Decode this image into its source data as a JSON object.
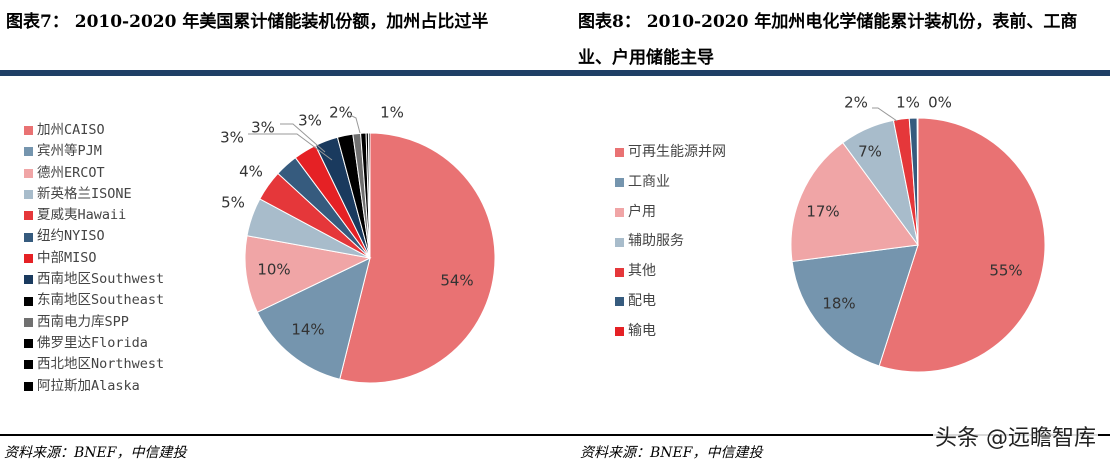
{
  "titles": {
    "left": "图表7： 2010-2020 年美国累计储能装机份额，加州占比过半",
    "right": "图表8： 2010-2020 年加州电化学储能累计装机份，表前、工商业、户用储能主导"
  },
  "chart_data": [
    {
      "type": "pie",
      "title": "2010-2020 年美国累计储能装机份额，加州占比过半",
      "start": "12 o'clock, clockwise",
      "legend_position": "left",
      "categories": [
        "加州CAISO",
        "宾州等PJM",
        "德州ERCOT",
        "新英格兰ISONE",
        "夏威夷Hawaii",
        "纽约NYISO",
        "中部MISO",
        "西南地区Southwest",
        "东南地区Southeast",
        "西南电力库SPP",
        "佛罗里达Florida",
        "西北地区Northwest",
        "阿拉斯加Alaska"
      ],
      "values": [
        54,
        14,
        10,
        5,
        4,
        3,
        3,
        3,
        2,
        1,
        0.7,
        0.3,
        0.2
      ],
      "labels": [
        "54%",
        "14%",
        "10%",
        "5%",
        "4%",
        "3%",
        "3%",
        "3%",
        "2%",
        "1%",
        "",
        "",
        ""
      ],
      "colors": [
        "#E97273",
        "#7595AE",
        "#F0A5A6",
        "#A8BCCB",
        "#E5373A",
        "#365B7E",
        "#E52125",
        "#1A3A5E",
        "#000000",
        "#707070",
        "#000000",
        "#000000",
        "#000000"
      ]
    },
    {
      "type": "pie",
      "title": "2010-2020 年加州电化学储能累计装机份，表前、工商业、户用储能主导",
      "start": "12 o'clock, clockwise",
      "legend_position": "left",
      "categories": [
        "可再生能源并网",
        "工商业",
        "户用",
        "辅助服务",
        "其他",
        "配电",
        "输电"
      ],
      "values": [
        55,
        18,
        17,
        7,
        2,
        1,
        0.1
      ],
      "labels": [
        "55%",
        "18%",
        "17%",
        "7%",
        "2%",
        "1%",
        "0%"
      ],
      "colors": [
        "#E97273",
        "#7595AE",
        "#F0A5A6",
        "#A8BCCB",
        "#E5373A",
        "#365B7E",
        "#E52125"
      ]
    }
  ],
  "sources": {
    "left": "资料来源：BNEF，中信建投",
    "right": "资料来源：BNEF，中信建投"
  },
  "watermark": "头条 @远瞻智库"
}
